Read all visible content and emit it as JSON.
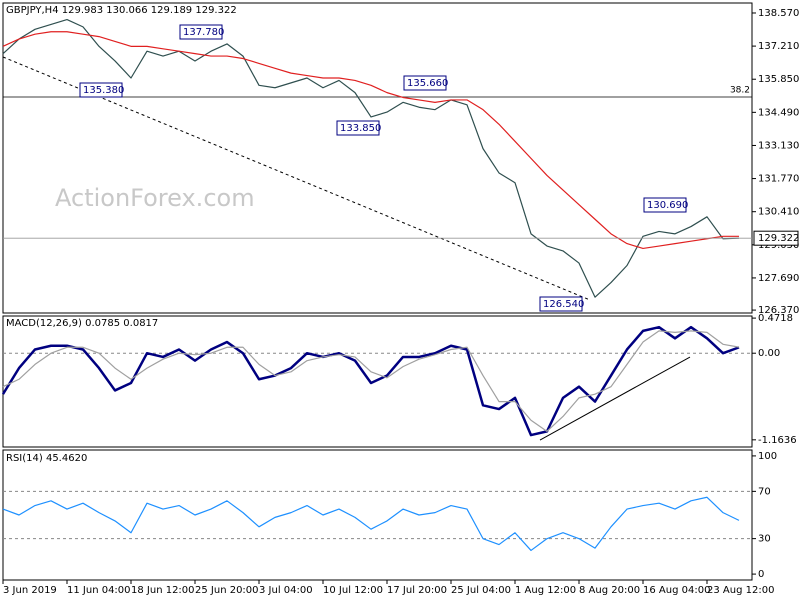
{
  "chart_data": [
    {
      "type": "line",
      "title": "GBPJPY,H4  129.983 130.066 129.189 129.322",
      "watermark": "ActionForex.com",
      "series": [
        {
          "color": "#2f4f4f",
          "values": [
            136.9,
            137.5,
            137.9,
            138.1,
            138.3,
            138.0,
            137.2,
            136.6,
            135.9,
            137.0,
            136.8,
            137.0,
            136.6,
            137.0,
            137.3,
            136.8,
            135.6,
            135.5,
            135.7,
            135.9,
            135.5,
            135.8,
            135.3,
            134.3,
            134.5,
            134.9,
            134.7,
            134.6,
            135.0,
            134.8,
            133.0,
            132.0,
            131.6,
            129.5,
            129.0,
            128.8,
            128.3,
            126.9,
            127.5,
            128.2,
            129.4,
            129.6,
            129.5,
            129.8,
            130.2,
            129.3,
            129.322
          ]
        },
        {
          "color": "#e02020",
          "values": [
            137.2,
            137.5,
            137.7,
            137.8,
            137.8,
            137.7,
            137.6,
            137.4,
            137.2,
            137.2,
            137.1,
            137.0,
            136.9,
            136.8,
            136.8,
            136.7,
            136.5,
            136.3,
            136.1,
            136.0,
            135.9,
            135.9,
            135.8,
            135.6,
            135.3,
            135.1,
            135.0,
            134.9,
            135.0,
            135.0,
            134.6,
            134.0,
            133.3,
            132.6,
            131.9,
            131.3,
            130.7,
            130.1,
            129.5,
            129.1,
            128.9,
            129.0,
            129.1,
            129.2,
            129.3,
            129.4,
            129.4
          ]
        }
      ],
      "last_label": "129.322",
      "fib_label": "38.2",
      "annotations": [
        "137.780",
        "135.380",
        "135.660",
        "133.850",
        "126.540",
        "130.690"
      ],
      "ylim": [
        126.25,
        138.98
      ],
      "yticks": [
        {
          "value": 138.57,
          "label": "138.570"
        },
        {
          "value": 137.21,
          "label": "137.210"
        },
        {
          "value": 135.85,
          "label": "135.850"
        },
        {
          "value": 134.49,
          "label": "134.490"
        },
        {
          "value": 133.13,
          "label": "133.130"
        },
        {
          "value": 131.77,
          "label": "131.770"
        },
        {
          "value": 130.41,
          "label": "130.410"
        },
        {
          "value": 129.05,
          "label": "129.050"
        },
        {
          "value": 127.69,
          "label": "127.690"
        },
        {
          "value": 126.37,
          "label": "126.370"
        }
      ],
      "grid": false
    },
    {
      "type": "line",
      "title": "MACD(12,26,9) 0.0785 0.0817",
      "series": [
        {
          "color": "#000080",
          "values": [
            -0.55,
            -0.2,
            0.05,
            0.1,
            0.1,
            0.05,
            -0.2,
            -0.5,
            -0.4,
            0.0,
            -0.05,
            0.05,
            -0.1,
            0.05,
            0.15,
            0.0,
            -0.35,
            -0.3,
            -0.2,
            0.0,
            -0.05,
            0.0,
            -0.1,
            -0.4,
            -0.3,
            -0.05,
            -0.05,
            0.0,
            0.1,
            0.05,
            -0.7,
            -0.75,
            -0.6,
            -1.1,
            -1.05,
            -0.6,
            -0.45,
            -0.65,
            -0.3,
            0.05,
            0.3,
            0.35,
            0.2,
            0.35,
            0.2,
            0.0,
            0.0785
          ]
        },
        {
          "color": "#a0a0a0",
          "values": [
            -0.45,
            -0.35,
            -0.15,
            0.0,
            0.08,
            0.08,
            0.0,
            -0.2,
            -0.35,
            -0.2,
            -0.08,
            0.0,
            -0.02,
            0.0,
            0.08,
            0.08,
            -0.15,
            -0.3,
            -0.25,
            -0.1,
            -0.05,
            -0.02,
            -0.05,
            -0.25,
            -0.33,
            -0.18,
            -0.08,
            -0.02,
            0.05,
            0.08,
            -0.3,
            -0.65,
            -0.65,
            -0.9,
            -1.05,
            -0.85,
            -0.6,
            -0.55,
            -0.45,
            -0.15,
            0.15,
            0.3,
            0.28,
            0.3,
            0.28,
            0.12,
            0.0817
          ]
        }
      ],
      "ylim": [
        -1.26,
        0.5
      ],
      "yticks": [
        0.4718,
        {
          "value": 0,
          "label": "0.00"
        },
        -1.1636
      ],
      "grid": true
    },
    {
      "type": "line",
      "title": "RSI(14) 45.4620",
      "categories": [
        "3 Jun 2019",
        null,
        null,
        null,
        "11 Jun 04:00",
        null,
        null,
        null,
        "18 Jun 12:00",
        null,
        null,
        null,
        "25 Jun 20:00",
        null,
        null,
        null,
        "3 Jul 04:00",
        null,
        null,
        null,
        "10 Jul 12:00",
        null,
        null,
        null,
        "17 Jul 20:00",
        null,
        null,
        null,
        "25 Jul 04:00",
        null,
        null,
        null,
        "1 Aug 12:00",
        null,
        null,
        null,
        "8 Aug 20:00",
        null,
        null,
        null,
        "16 Aug 04:00",
        null,
        null,
        null,
        "23 Aug 12:00",
        null,
        null
      ],
      "series": [
        {
          "color": "#1e90ff",
          "values": [
            55,
            50,
            58,
            62,
            55,
            60,
            52,
            45,
            35,
            60,
            55,
            58,
            50,
            55,
            62,
            52,
            40,
            48,
            52,
            58,
            50,
            55,
            48,
            38,
            45,
            55,
            50,
            52,
            58,
            55,
            30,
            25,
            35,
            20,
            30,
            35,
            30,
            22,
            40,
            55,
            58,
            60,
            55,
            62,
            65,
            52,
            45.462
          ]
        }
      ],
      "ylim": [
        -5,
        105
      ],
      "yticks": [
        100,
        70,
        30,
        0
      ],
      "grid": true
    }
  ]
}
